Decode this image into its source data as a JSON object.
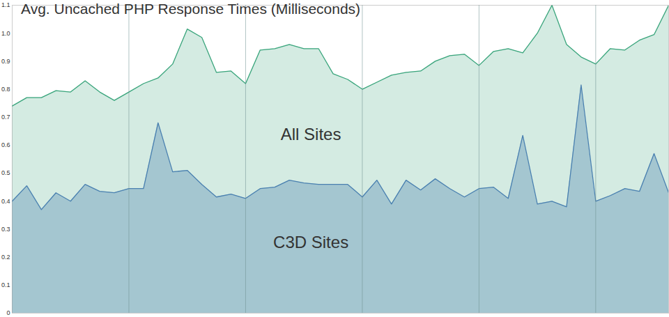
{
  "chart_data": {
    "type": "area",
    "title": "Avg. Uncached PHP Response Times (Milliseconds)",
    "x": [
      0,
      1,
      2,
      3,
      4,
      5,
      6,
      7,
      8,
      9,
      10,
      11,
      12,
      13,
      14,
      15,
      16,
      17,
      18,
      19,
      20,
      21,
      22,
      23,
      24,
      25,
      26,
      27,
      28,
      29,
      30,
      31,
      32,
      33,
      34,
      35,
      36,
      37,
      38,
      39,
      40,
      41,
      42,
      43,
      44,
      45
    ],
    "series": [
      {
        "name": "All Sites",
        "color": "#3aa57c",
        "values": [
          0.74,
          0.77,
          0.77,
          0.795,
          0.79,
          0.83,
          0.79,
          0.76,
          0.79,
          0.82,
          0.84,
          0.89,
          1.015,
          0.985,
          0.86,
          0.865,
          0.82,
          0.94,
          0.945,
          0.96,
          0.945,
          0.945,
          0.855,
          0.835,
          0.8,
          0.825,
          0.85,
          0.86,
          0.865,
          0.9,
          0.92,
          0.925,
          0.885,
          0.935,
          0.945,
          0.93,
          1.0,
          1.1,
          0.96,
          0.915,
          0.89,
          0.945,
          0.94,
          0.975,
          0.995,
          1.1
        ]
      },
      {
        "name": "C3D Sites",
        "color": "#4a80b0",
        "values": [
          0.4,
          0.455,
          0.37,
          0.43,
          0.4,
          0.46,
          0.435,
          0.43,
          0.445,
          0.445,
          0.68,
          0.505,
          0.51,
          0.46,
          0.415,
          0.425,
          0.41,
          0.445,
          0.45,
          0.475,
          0.465,
          0.46,
          0.46,
          0.46,
          0.415,
          0.475,
          0.39,
          0.475,
          0.44,
          0.48,
          0.445,
          0.415,
          0.445,
          0.45,
          0.41,
          0.635,
          0.39,
          0.4,
          0.38,
          0.815,
          0.4,
          0.42,
          0.445,
          0.435,
          0.57,
          0.43
        ]
      }
    ],
    "xlim": [
      0,
      45
    ],
    "xticks": [
      8,
      16,
      24,
      32,
      40
    ],
    "ylim": [
      0,
      1.1
    ],
    "yticks": [
      0,
      0.1,
      0.2,
      0.3,
      0.4,
      0.5,
      0.6,
      0.7,
      0.8,
      0.9,
      {
        "value": 1,
        "label": "1.0"
      },
      1.1
    ],
    "grid": "x",
    "tick_labels": "y"
  }
}
